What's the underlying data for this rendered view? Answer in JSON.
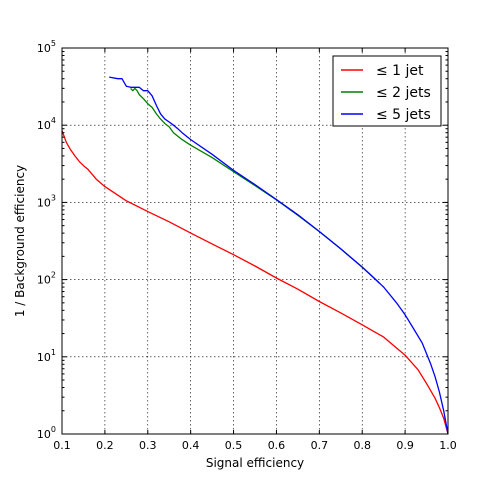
{
  "chart_data": {
    "type": "line",
    "xlabel": "Signal efficiency",
    "ylabel": "1 / Background efficiency",
    "xlim": [
      0.1,
      1.0
    ],
    "ylim": [
      1,
      100000
    ],
    "yscale": "log",
    "grid": true,
    "legend_position": "top-right",
    "x_ticks": [
      "0.1",
      "0.2",
      "0.3",
      "0.4",
      "0.5",
      "0.6",
      "0.7",
      "0.8",
      "0.9",
      "1.0"
    ],
    "y_ticks": [
      {
        "value": 1,
        "base": "10",
        "exp": "0"
      },
      {
        "value": 10,
        "base": "10",
        "exp": "1"
      },
      {
        "value": 100,
        "base": "10",
        "exp": "2"
      },
      {
        "value": 1000,
        "base": "10",
        "exp": "3"
      },
      {
        "value": 10000,
        "base": "10",
        "exp": "4"
      },
      {
        "value": 100000,
        "base": "10",
        "exp": "5"
      }
    ],
    "series": [
      {
        "name": "≤  1 jet",
        "color": "#ff0000",
        "x": [
          0.1,
          0.11,
          0.12,
          0.13,
          0.14,
          0.15,
          0.16,
          0.18,
          0.2,
          0.25,
          0.3,
          0.35,
          0.4,
          0.45,
          0.5,
          0.55,
          0.6,
          0.65,
          0.7,
          0.75,
          0.8,
          0.85,
          0.9,
          0.93,
          0.95,
          0.97,
          0.98,
          0.99,
          1.0
        ],
        "y": [
          8500,
          6000,
          4800,
          4000,
          3400,
          3000,
          2700,
          2000,
          1600,
          1050,
          760,
          560,
          400,
          290,
          210,
          150,
          105,
          75,
          52,
          37,
          26,
          18,
          10.5,
          6.8,
          4.5,
          2.9,
          2.2,
          1.6,
          1.0
        ]
      },
      {
        "name": "≤  2 jets",
        "color": "#008000",
        "x": [
          0.26,
          0.265,
          0.27,
          0.275,
          0.28,
          0.29,
          0.3,
          0.31,
          0.32,
          0.33,
          0.34,
          0.35,
          0.36,
          0.38,
          0.4,
          0.45,
          0.5,
          0.55,
          0.6,
          0.65,
          0.7,
          0.75,
          0.8,
          0.82,
          0.84
        ],
        "y": [
          30000,
          28000,
          30000,
          28000,
          25000,
          22000,
          19000,
          17000,
          14000,
          12000,
          10500,
          9500,
          8000,
          6500,
          5500,
          3800,
          2500,
          1650,
          1080,
          680,
          420,
          250,
          145,
          115,
          90
        ]
      },
      {
        "name": "≤  5 jets",
        "color": "#0000ff",
        "x": [
          0.21,
          0.23,
          0.24,
          0.25,
          0.26,
          0.28,
          0.29,
          0.3,
          0.31,
          0.32,
          0.33,
          0.34,
          0.35,
          0.36,
          0.37,
          0.38,
          0.4,
          0.45,
          0.5,
          0.55,
          0.6,
          0.65,
          0.7,
          0.75,
          0.8,
          0.85,
          0.88,
          0.9,
          0.92,
          0.94,
          0.96,
          0.97,
          0.98,
          0.99,
          1.0
        ],
        "y": [
          42000,
          40000,
          40000,
          32000,
          31000,
          31000,
          28000,
          28000,
          24000,
          18000,
          14000,
          12000,
          11000,
          10000,
          9000,
          8000,
          6500,
          4200,
          2600,
          1700,
          1090,
          690,
          420,
          250,
          145,
          80,
          50,
          35,
          23,
          15,
          8,
          5.5,
          3.5,
          2.0,
          1.0
        ]
      }
    ]
  }
}
